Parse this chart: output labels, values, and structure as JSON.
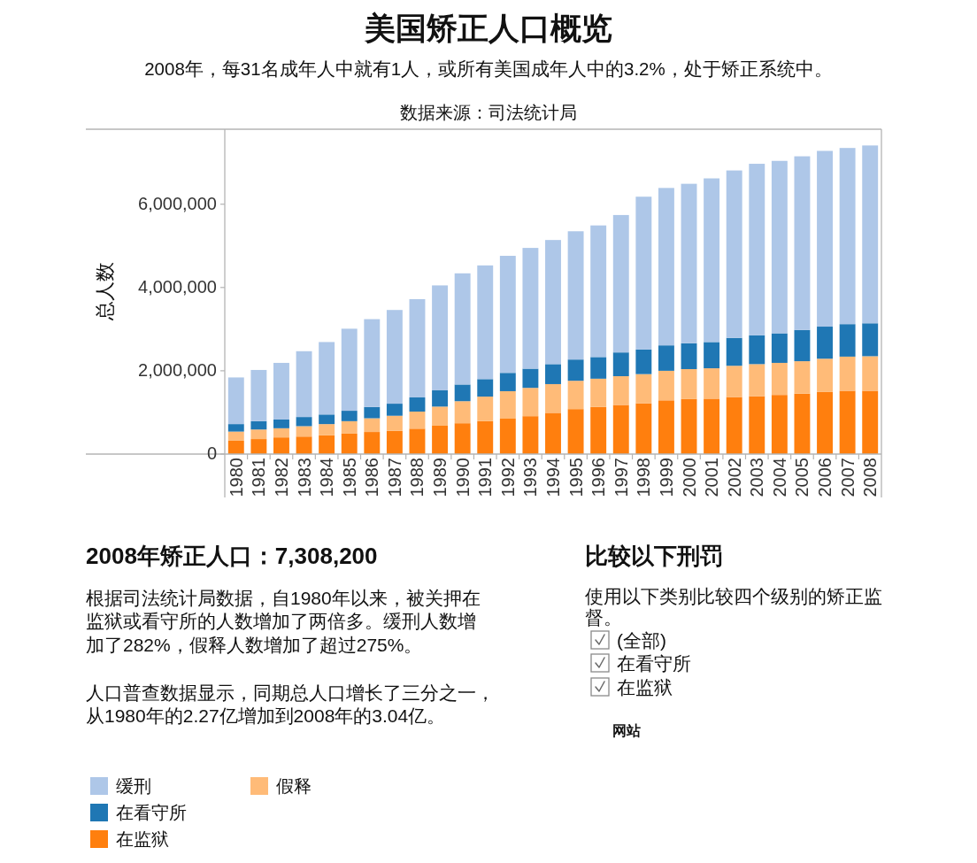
{
  "chart_data": {
    "type": "bar",
    "stacked": true,
    "title": "美国矫正人口概览",
    "subtitle": "2008年，每31名成年人中就有1人，或所有美国成年人中的3.2%，处于矫正系统中。",
    "ylabel": "总人数",
    "categories": [
      "1980",
      "1981",
      "1982",
      "1983",
      "1984",
      "1985",
      "1986",
      "1987",
      "1988",
      "1989",
      "1990",
      "1991",
      "1992",
      "1993",
      "1994",
      "1995",
      "1996",
      "1997",
      "1998",
      "1999",
      "2000",
      "2001",
      "2002",
      "2003",
      "2004",
      "2005",
      "2006",
      "2007",
      "2008"
    ],
    "series": [
      {
        "name": "在监狱",
        "color": "#ff7f0e",
        "values": [
          320000,
          360000,
          400000,
          420000,
          450000,
          490000,
          530000,
          560000,
          610000,
          680000,
          740000,
          790000,
          850000,
          910000,
          990000,
          1080000,
          1130000,
          1180000,
          1220000,
          1290000,
          1320000,
          1330000,
          1370000,
          1390000,
          1420000,
          1450000,
          1490000,
          1520000,
          1520000
        ]
      },
      {
        "name": "假释",
        "color": "#ffbb78",
        "values": [
          220000,
          230000,
          220000,
          250000,
          270000,
          300000,
          330000,
          360000,
          410000,
          460000,
          530000,
          590000,
          660000,
          680000,
          690000,
          680000,
          680000,
          690000,
          700000,
          710000,
          720000,
          730000,
          750000,
          770000,
          770000,
          780000,
          800000,
          820000,
          830000
        ]
      },
      {
        "name": "在看守所",
        "color": "#1f77b4",
        "values": [
          180000,
          200000,
          210000,
          220000,
          230000,
          250000,
          270000,
          290000,
          340000,
          390000,
          400000,
          420000,
          440000,
          460000,
          480000,
          510000,
          520000,
          570000,
          590000,
          610000,
          620000,
          630000,
          670000,
          690000,
          710000,
          750000,
          770000,
          780000,
          790000
        ]
      },
      {
        "name": "缓刑",
        "color": "#aec7e8",
        "values": [
          1120000,
          1230000,
          1360000,
          1580000,
          1740000,
          1970000,
          2110000,
          2250000,
          2360000,
          2520000,
          2670000,
          2730000,
          2810000,
          2900000,
          2980000,
          3080000,
          3160000,
          3300000,
          3670000,
          3780000,
          3830000,
          3930000,
          4020000,
          4120000,
          4140000,
          4170000,
          4220000,
          4230000,
          4270000
        ]
      }
    ],
    "ylim": [
      0,
      7800000
    ],
    "yticks": [
      0,
      {
        "value": 2000000,
        "label": "2,000,000"
      },
      {
        "value": 4000000,
        "label": "4,000,000"
      },
      {
        "value": 6000000,
        "label": "6,000,000"
      }
    ],
    "legend": "bottom left",
    "annotations": [
      "数据来源：司法统计局",
      "2008年矫正人口：7,308,200",
      "根据司法统计局数据，自1980年以来，被关押在监狱或看守所的人数增加了两倍多。缓刑人数增加了282%，假释人数增加了超过275%。",
      "人口普查数据显示，同期总人口增长了三分之一，从1980年的2.27亿增加到2008年的3.04亿。",
      "比较以下刑罚",
      "使用以下类别比较四个级别的矫正监督。",
      "(全部)",
      "在看守所",
      "在监狱",
      "网站"
    ]
  }
}
